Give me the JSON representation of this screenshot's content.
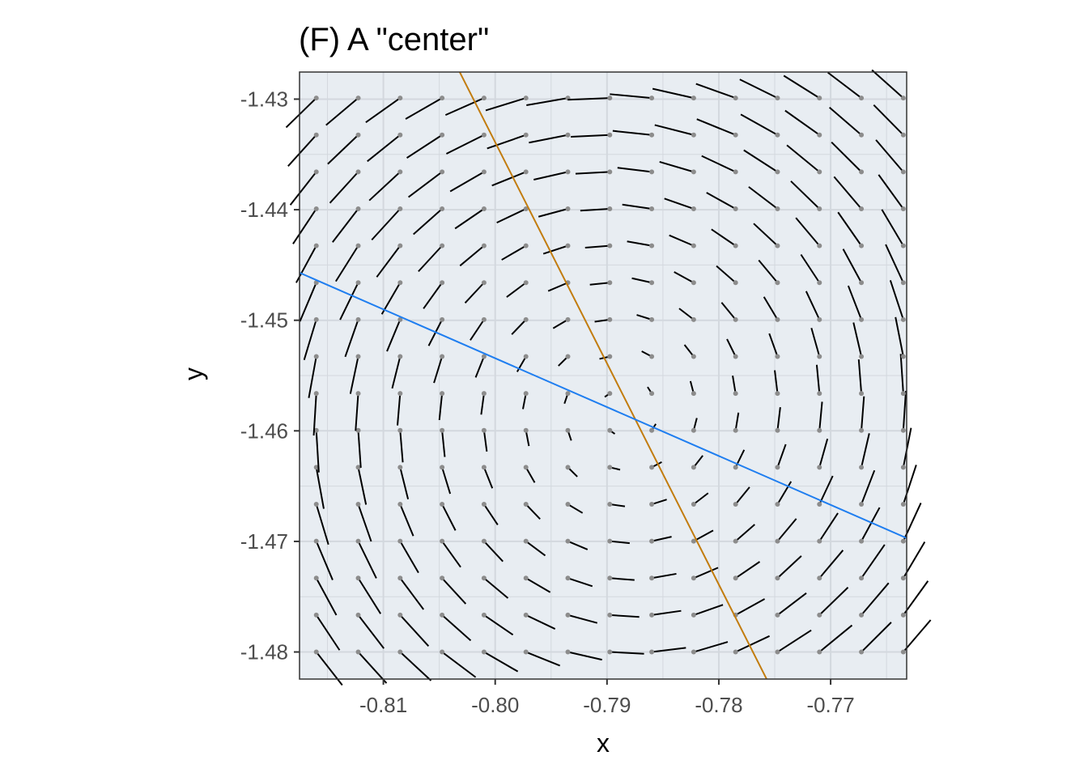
{
  "chart_data": {
    "type": "vector_field",
    "title": "(F) A \"center\"",
    "xlabel": "x",
    "ylabel": "y",
    "xlim": [
      -0.8175,
      -0.7632
    ],
    "ylim": [
      -1.48245,
      -1.42755
    ],
    "x_ticks": [
      -0.81,
      -0.8,
      -0.79,
      -0.78,
      -0.77
    ],
    "x_tick_labels": [
      "-0.81",
      "-0.80",
      "-0.79",
      "-0.78",
      "-0.77"
    ],
    "y_ticks": [
      -1.43,
      -1.44,
      -1.45,
      -1.46,
      -1.47,
      -1.48
    ],
    "y_tick_labels": [
      "-1.43",
      "-1.44",
      "-1.45",
      "-1.46",
      "-1.47",
      "-1.48"
    ],
    "grid": true,
    "background": "#e8edf2",
    "grid_color": "#d3d8de",
    "field": {
      "center_x": -0.7886,
      "center_y": -1.4583,
      "grid_x_start": -0.816,
      "grid_x_step": 0.00375,
      "grid_x_count": 15,
      "grid_y_start": -1.48,
      "grid_y_step": 0.00334,
      "grid_y_count": 16,
      "vector_color": "#000000",
      "point_color": "#8c8c8c"
    },
    "series": [
      {
        "type": "line",
        "color": "#c27c0e",
        "points": [
          [
            -0.8032,
            -1.4275
          ],
          [
            -0.7757,
            -1.4825
          ]
        ]
      },
      {
        "type": "line",
        "color": "#1f7ef0",
        "points": [
          [
            -0.8175,
            -1.4457
          ],
          [
            -0.7632,
            -1.4697
          ]
        ]
      }
    ]
  }
}
